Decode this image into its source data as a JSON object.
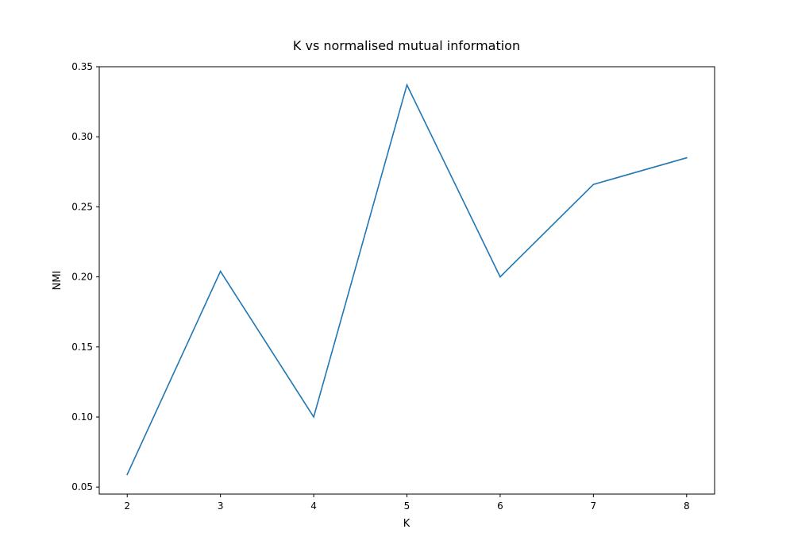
{
  "chart_data": {
    "type": "line",
    "title": "K vs normalised mutual information",
    "xlabel": "K",
    "ylabel": "NMI",
    "xlim": [
      1.7,
      8.3
    ],
    "ylim": [
      0.045,
      0.35
    ],
    "x": [
      2,
      3,
      4,
      5,
      6,
      7,
      8
    ],
    "series": [
      {
        "values": [
          0.059,
          0.204,
          0.1,
          0.337,
          0.2,
          0.266,
          0.285
        ],
        "color": "#1f77b4"
      }
    ],
    "xticks": [
      "2",
      "3",
      "4",
      "5",
      "6",
      "7",
      "8"
    ],
    "yticks": [
      "0.05",
      "0.10",
      "0.15",
      "0.20",
      "0.25",
      "0.30",
      "0.35"
    ],
    "grid": false,
    "legend": "none"
  }
}
